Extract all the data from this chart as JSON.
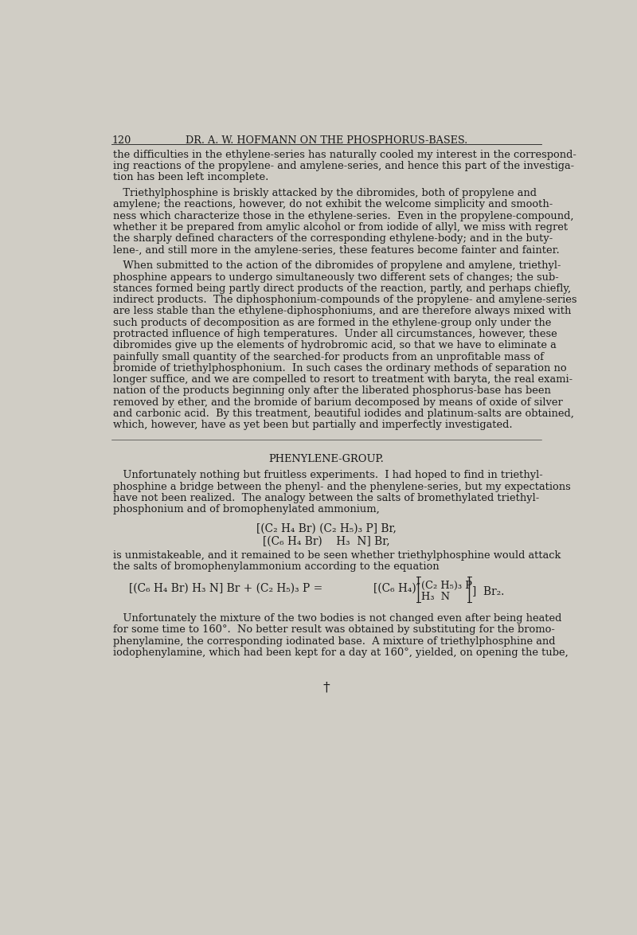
{
  "bg_color": "#d0cdc5",
  "text_color": "#1a1a1a",
  "page_number": "120",
  "header": "DR. A. W. HOFMANN ON THE PHOSPHORUS-BASES.",
  "para1": "the difficulties in the ethylene-series has naturally cooled my interest in the correspond-\ning reactions of the propylene- and amylene-series, and hence this part of the investiga-\ntion has been left incomplete.",
  "para2": "   Triethylphosphine is briskly attacked by the dibromides, both of propylene and\namylene; the reactions, however, do not exhibit the welcome simplicity and smooth-\nness which characterize those in the ethylene-series.  Even in the propylene-compound,\nwhether it be prepared from amylic alcohol or from iodide of allyl, we miss with regret\nthe sharply defined characters of the corresponding ethylene-body; and in the buty-\nlene-, and still more in the amylene-series, these features become fainter and fainter.",
  "para3": "   When submitted to the action of the dibromides of propylene and amylene, triethyl-\nphosphine appears to undergo simultaneously two different sets of changes; the sub-\nstances formed being partly direct products of the reaction, partly, and perhaps chiefly,\nindirect products.  The diphosphonium-compounds of the propylene- and amylene-series\nare less stable than the ethylene-diphosphoniums, and are therefore always mixed with\nsuch products of decomposition as are formed in the ethylene-group only under the\nprotracted influence of high temperatures.  Under all circumstances, however, these\ndibromides give up the elements of hydrobromic acid, so that we have to eliminate a\npainfully small quantity of the searched-for products from an unprofitable mass of\nbromide of triethylphosphonium.  In such cases the ordinary methods of separation no\nlonger suffice, and we are compelled to resort to treatment with baryta, the real exami-\nnation of the products beginning only after the liberated phosphorus-base has been\nremoved by ether, and the bromide of barium decomposed by means of oxide of silver\nand carbonic acid.  By this treatment, beautiful iodides and platinum-salts are obtained,\nwhich, however, have as yet been but partially and imperfectly investigated.",
  "section_header": "PHENYLENE-GROUP.",
  "para4": "   Unfortunately nothing but fruitless experiments.  I had hoped to find in triethyl-\nphosphine a bridge between the phenyl- and the phenylene-series, but my expectations\nhave not been realized.  The analogy between the salts of bromethylated triethyl-\nphosphonium and of bromophenylated ammonium,",
  "formula1": "[(C₂ H₄ Br) (C₂ H₅)₃ P] Br,",
  "formula2": "[(C₆ H₄ Br)    H₃  N] Br,",
  "para5": "is unmistakeable, and it remained to be seen whether triethylphosphine would attack\nthe salts of bromophenylammonium according to the equation",
  "eq_left": "[(C₆ H₄ Br) H₃ N] Br + (C₂ H₅)₃ P =",
  "eq_right_pre": "[(C₆ H₄)″",
  "eq_right_top": "(C₂ H₅)₃ P",
  "eq_right_bot": "H₃  N",
  "eq_right_post": "]  Br₂.",
  "para6": "   Unfortunately the mixture of the two bodies is not changed even after being heated\nfor some time to 160°.  No better result was obtained by substituting for the bromo-\nphenylamine, the corresponding iodinated base.  A mixture of triethylphosphine and\niodophenylamine, which had been kept for a day at 160°, yielded, on opening the tube,",
  "bottom_symbol": "†"
}
